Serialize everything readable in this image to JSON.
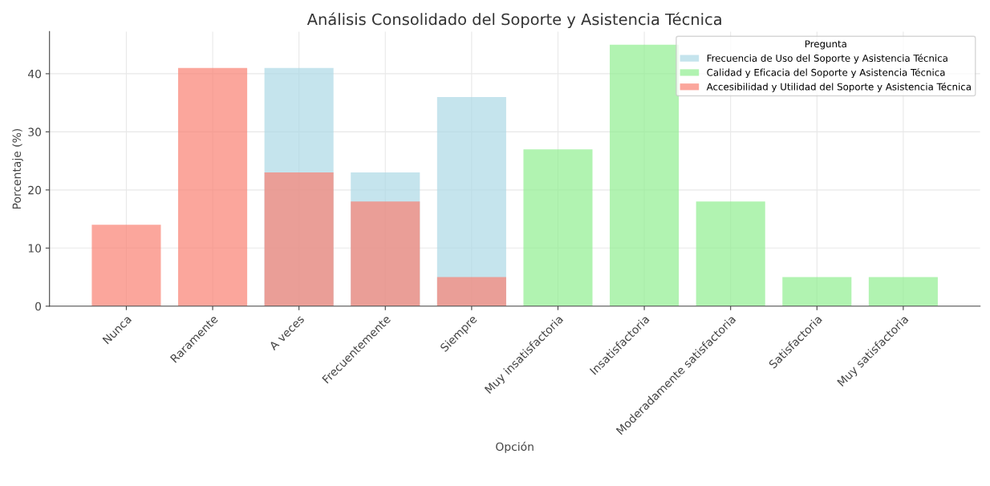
{
  "chart_data": {
    "type": "bar",
    "title": "Análisis Consolidado del Soporte y Asistencia Técnica",
    "xlabel": "Opción",
    "ylabel": "Porcentaje (%)",
    "legend_title": "Pregunta",
    "categories": [
      "Nunca",
      "Raramente",
      "A veces",
      "Frecuentemente",
      "Siempre",
      "Muy insatisfactoria",
      "Insatisfactoria",
      "Moderadamente satisfactoria",
      "Satisfactoria",
      "Muy satisfactoria"
    ],
    "series": [
      {
        "name": "Frecuencia de Uso del Soporte y Asistencia Técnica",
        "color": "#add8e6",
        "values": [
          0,
          0,
          41,
          23,
          36,
          null,
          null,
          null,
          null,
          null
        ]
      },
      {
        "name": "Calidad y Eficacia del Soporte y Asistencia Técnica",
        "color": "#90ee90",
        "values": [
          null,
          null,
          null,
          null,
          null,
          27,
          45,
          18,
          5,
          5
        ]
      },
      {
        "name": "Accesibilidad y Utilidad del Soporte y Asistencia Técnica",
        "color": "#fa8072",
        "values": [
          14,
          41,
          23,
          18,
          5,
          null,
          null,
          null,
          null,
          null
        ]
      }
    ],
    "ylim": [
      0,
      47.25
    ],
    "yticks": [
      0,
      10,
      20,
      30,
      40
    ],
    "grid": true,
    "legend": "top right"
  }
}
